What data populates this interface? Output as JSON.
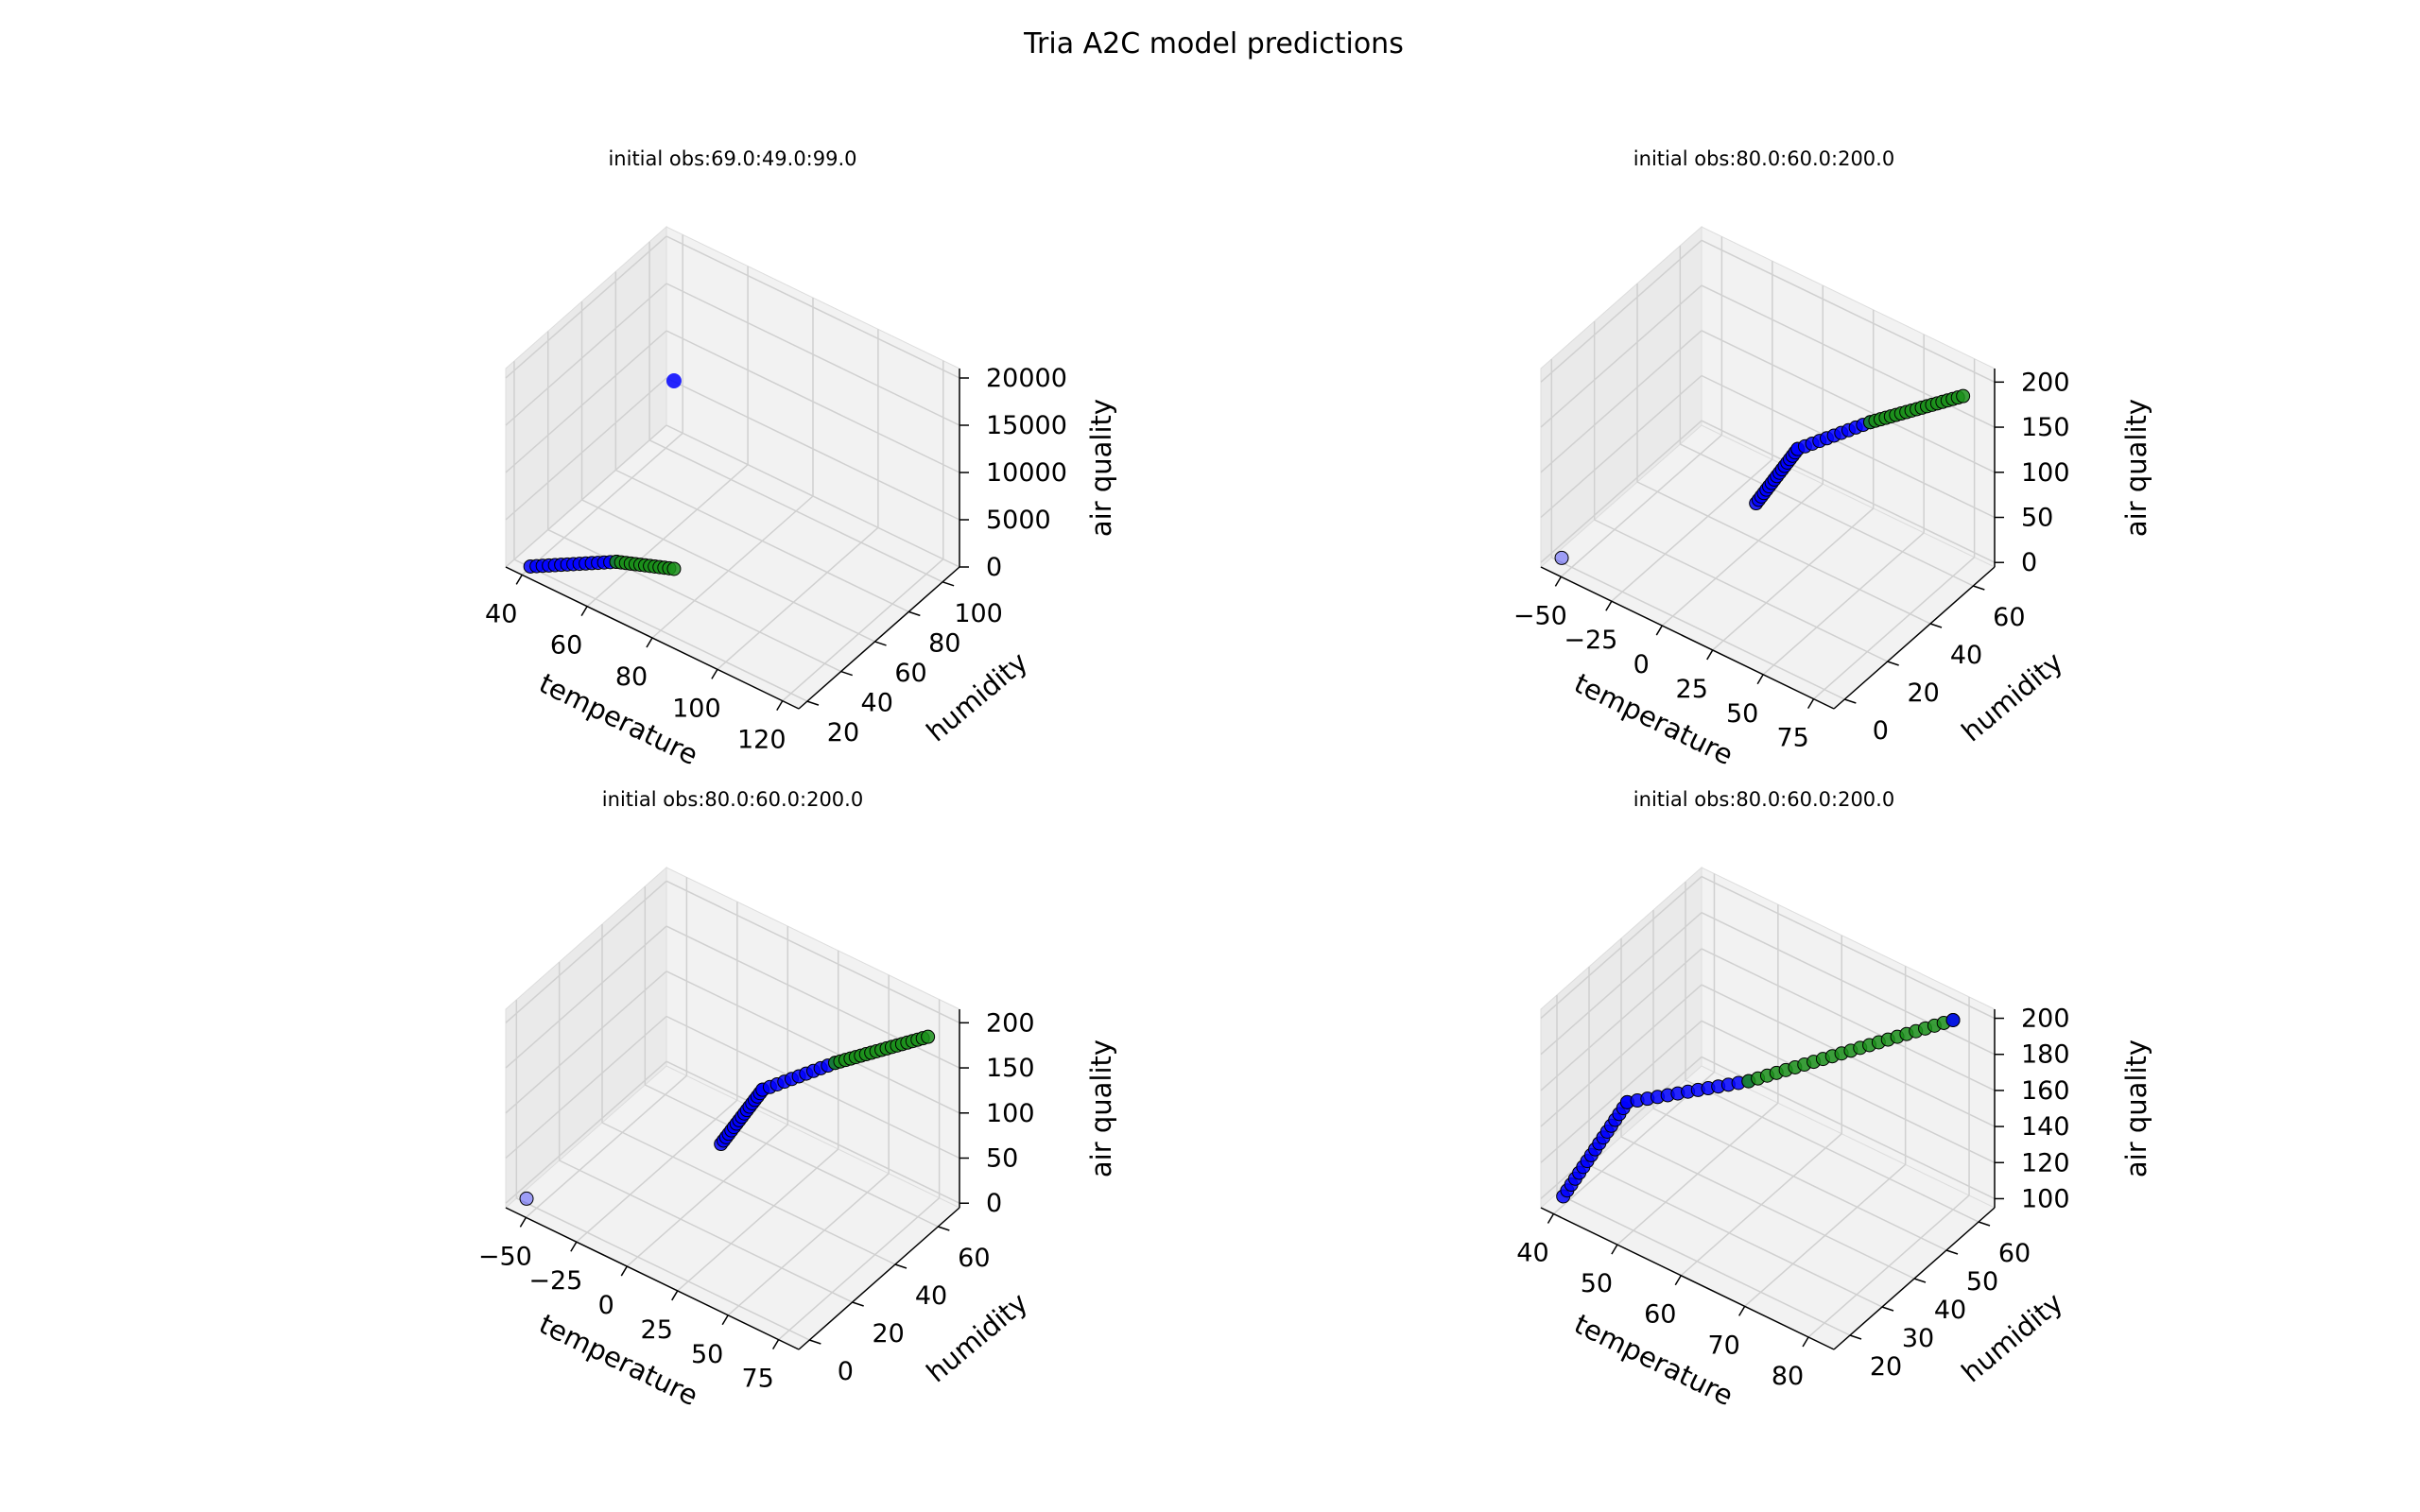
{
  "figure": {
    "title": "Tria A2C model predictions"
  },
  "colors": {
    "pane": "#f2f2f2",
    "pane_side": "#eaeaea",
    "grid": "#d0d0d0",
    "axis": "#000000",
    "blue": "#0000ff",
    "green": "#1a8f1a",
    "edge": "#000000"
  },
  "chart_data": [
    {
      "type": "scatter",
      "title": "initial obs:69.0:49.0:99.0",
      "xlabel": "temperature",
      "ylabel": "humidity",
      "zlabel": "air quality",
      "xlim": [
        35,
        125
      ],
      "ylim": [
        15,
        110
      ],
      "zlim": [
        0,
        21000
      ],
      "xticks": [
        40,
        60,
        80,
        100,
        120
      ],
      "yticks": [
        20,
        40,
        60,
        80,
        100
      ],
      "zticks": [
        0,
        5000,
        10000,
        15000,
        20000
      ],
      "grid": true,
      "segments": [
        {
          "from": [
            40,
            20,
            100
          ],
          "to": [
            56,
            40,
            100
          ],
          "n": 14,
          "color": "blue"
        },
        {
          "from": [
            56,
            40,
            100
          ],
          "to": [
            69,
            49,
            100
          ],
          "n": 12,
          "color": "green"
        }
      ],
      "points": [
        {
          "x": 69,
          "y": 49,
          "z": 20000,
          "color": "blue",
          "size": "large"
        }
      ]
    },
    {
      "type": "scatter",
      "title": "initial obs:80.0:60.0:200.0",
      "xlabel": "temperature",
      "ylabel": "humidity",
      "zlabel": "air quality",
      "xlim": [
        -60,
        85
      ],
      "ylim": [
        -5,
        70
      ],
      "zlim": [
        -5,
        215
      ],
      "xticks": [
        -50,
        -25,
        0,
        25,
        50,
        75
      ],
      "yticks": [
        0,
        20,
        40,
        60
      ],
      "zticks": [
        0,
        50,
        100,
        150,
        200
      ],
      "grid": true,
      "segments": [
        {
          "from": [
            20,
            20,
            100
          ],
          "to": [
            30,
            30,
            150
          ],
          "n": 16,
          "color": "blue"
        },
        {
          "from": [
            30,
            30,
            150
          ],
          "to": [
            50,
            45,
            170
          ],
          "n": 10,
          "color": "blue"
        },
        {
          "from": [
            50,
            45,
            170
          ],
          "to": [
            80,
            60,
            200
          ],
          "n": 18,
          "color": "green"
        }
      ],
      "points": [
        {
          "x": -55,
          "y": 0,
          "z": 0,
          "color": "blue",
          "size": "faint"
        }
      ]
    },
    {
      "type": "scatter",
      "title": "initial obs:80.0:60.0:200.0",
      "xlabel": "temperature",
      "ylabel": "humidity",
      "zlabel": "air quality",
      "xlim": [
        -60,
        85
      ],
      "ylim": [
        -5,
        70
      ],
      "zlim": [
        -5,
        215
      ],
      "xticks": [
        -50,
        -25,
        0,
        25,
        50,
        75
      ],
      "yticks": [
        0,
        20,
        40,
        60
      ],
      "zticks": [
        0,
        50,
        100,
        150,
        200
      ],
      "grid": true,
      "segments": [
        {
          "from": [
            20,
            20,
            100
          ],
          "to": [
            30,
            30,
            150
          ],
          "n": 16,
          "color": "blue"
        },
        {
          "from": [
            30,
            30,
            150
          ],
          "to": [
            50,
            45,
            170
          ],
          "n": 10,
          "color": "blue"
        },
        {
          "from": [
            50,
            45,
            170
          ],
          "to": [
            80,
            60,
            200
          ],
          "n": 18,
          "color": "green"
        }
      ],
      "points": [
        {
          "x": -55,
          "y": 0,
          "z": 0,
          "color": "blue",
          "size": "faint"
        }
      ]
    },
    {
      "type": "scatter",
      "title": "initial obs:80.0:60.0:200.0",
      "xlabel": "temperature",
      "ylabel": "humidity",
      "zlabel": "air quality",
      "xlim": [
        38,
        84
      ],
      "ylim": [
        15,
        65
      ],
      "zlim": [
        95,
        205
      ],
      "xticks": [
        40,
        50,
        60,
        70,
        80
      ],
      "yticks": [
        20,
        30,
        40,
        50,
        60
      ],
      "zticks": [
        100,
        120,
        140,
        160,
        180,
        200
      ],
      "grid": true,
      "segments": [
        {
          "from": [
            40,
            18,
            100
          ],
          "to": [
            45,
            28,
            145
          ],
          "n": 16,
          "color": "blue"
        },
        {
          "from": [
            45,
            28,
            145
          ],
          "to": [
            58,
            40,
            160
          ],
          "n": 12,
          "color": "blue"
        },
        {
          "from": [
            58,
            40,
            160
          ],
          "to": [
            80,
            60,
            200
          ],
          "n": 22,
          "color": "green"
        }
      ],
      "points": [
        {
          "x": 80,
          "y": 60,
          "z": 200,
          "color": "blue",
          "size": "small"
        }
      ]
    }
  ]
}
